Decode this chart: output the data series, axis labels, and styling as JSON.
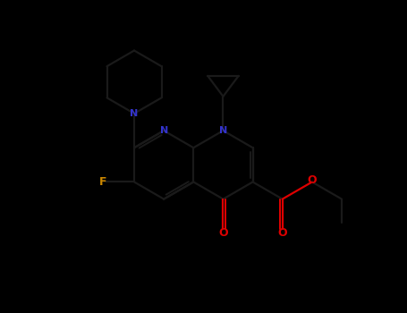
{
  "bg_color": "#000000",
  "bond_color": "#1a1a1a",
  "N_color": "#3333cc",
  "O_color": "#dd0000",
  "F_color": "#cc8800",
  "lw": 1.6,
  "figsize": [
    4.55,
    3.5
  ],
  "dpi": 100,
  "xlim": [
    0,
    9
  ],
  "ylim": [
    0.5,
    8.0
  ],
  "bl": 0.82
}
